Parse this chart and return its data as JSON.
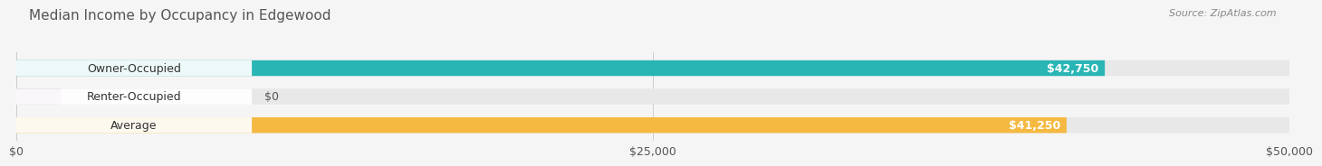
{
  "title": "Median Income by Occupancy in Edgewood",
  "source": "Source: ZipAtlas.com",
  "categories": [
    "Owner-Occupied",
    "Renter-Occupied",
    "Average"
  ],
  "values": [
    42750,
    0,
    41250
  ],
  "bar_colors": [
    "#2ab5b5",
    "#c8a8d8",
    "#f5b942"
  ],
  "bar_labels": [
    "$42,750",
    "$0",
    "$41,250"
  ],
  "xlim": [
    0,
    50000
  ],
  "xticks": [
    0,
    25000,
    50000
  ],
  "xtick_labels": [
    "$0",
    "$25,000",
    "$50,000"
  ],
  "background_color": "#f5f5f5",
  "bar_bg_color": "#e8e8e8",
  "title_fontsize": 11,
  "label_fontsize": 9,
  "source_fontsize": 8
}
